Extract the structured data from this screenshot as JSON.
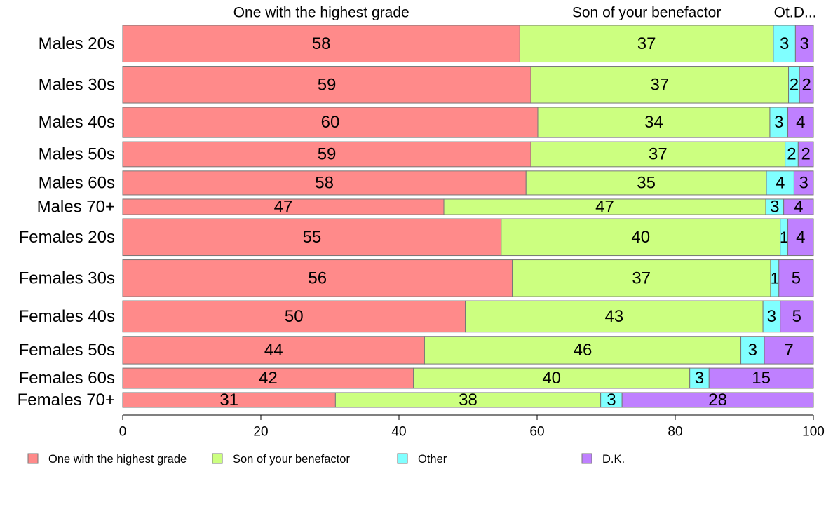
{
  "chart_data": {
    "type": "bar",
    "orientation": "horizontal",
    "stacked": true,
    "xlim": [
      0,
      100
    ],
    "x_ticks": [
      0,
      20,
      40,
      60,
      80,
      100
    ],
    "column_headers": [
      "One with the highest grade",
      "Son of your benefactor",
      "Ot.",
      "D..."
    ],
    "categories": [
      "Males 20s",
      "Males 30s",
      "Males 40s",
      "Males 50s",
      "Males 60s",
      "Males 70+",
      "Females 20s",
      "Females 30s",
      "Females 40s",
      "Females 50s",
      "Females 60s",
      "Females 70+"
    ],
    "bar_weights": [
      1.0,
      1.0,
      0.82,
      0.68,
      0.65,
      0.42,
      1.0,
      1.0,
      0.85,
      0.75,
      0.55,
      0.4
    ],
    "series": [
      {
        "name": "One with the highest grade",
        "color": "#ff8a8a",
        "values": [
          57.5,
          59.1,
          60.1,
          59.1,
          58.4,
          46.5,
          54.8,
          56.4,
          49.6,
          43.7,
          42.1,
          30.8
        ]
      },
      {
        "name": "Son of your benefactor",
        "color": "#ccff80",
        "values": [
          36.7,
          37.3,
          33.6,
          36.8,
          34.8,
          46.6,
          40.4,
          37.4,
          43.1,
          45.8,
          40.0,
          38.4
        ]
      },
      {
        "name": "Other",
        "color": "#80ffff",
        "values": [
          3.2,
          1.6,
          2.6,
          1.9,
          4.0,
          2.6,
          1.1,
          1.2,
          2.5,
          3.4,
          2.8,
          3.1
        ]
      },
      {
        "name": "D.K.",
        "color": "#bf80ff",
        "values": [
          2.6,
          2.0,
          3.7,
          2.2,
          2.8,
          4.3,
          3.7,
          5.0,
          4.8,
          7.1,
          15.1,
          27.7
        ]
      }
    ],
    "legend_position": "bottom",
    "grid": false
  }
}
